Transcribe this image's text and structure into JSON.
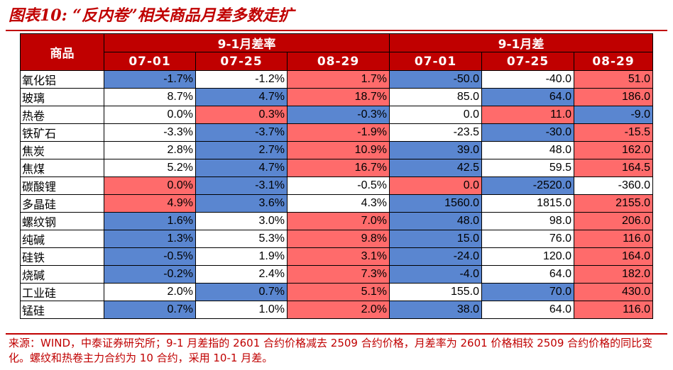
{
  "title": "图表10:   “反内卷”相关商品月差多数走扩",
  "header": {
    "product_label": "商品",
    "group_rate": "9-1月差率",
    "group_diff": "9-1月差",
    "dates": [
      "07-01",
      "07-25",
      "08-29",
      "07-01",
      "07-25",
      "08-29"
    ]
  },
  "colors": {
    "title_red": "#c00000",
    "blue_cell": "#5a86d0",
    "red_cell": "#ff6b6b"
  },
  "rows": [
    {
      "name": "氧化铝",
      "cells": [
        {
          "v": "-1.7%",
          "c": "blue"
        },
        {
          "v": "-1.2%",
          "c": "white"
        },
        {
          "v": "1.7%",
          "c": "red"
        },
        {
          "v": "-50.0",
          "c": "blue"
        },
        {
          "v": "-40.0",
          "c": "white"
        },
        {
          "v": "51.0",
          "c": "red"
        }
      ]
    },
    {
      "name": "玻璃",
      "cells": [
        {
          "v": "8.7%",
          "c": "white"
        },
        {
          "v": "4.7%",
          "c": "blue"
        },
        {
          "v": "18.7%",
          "c": "red"
        },
        {
          "v": "85.0",
          "c": "white"
        },
        {
          "v": "64.0",
          "c": "blue"
        },
        {
          "v": "186.0",
          "c": "red"
        }
      ]
    },
    {
      "name": "热卷",
      "cells": [
        {
          "v": "0.0%",
          "c": "white"
        },
        {
          "v": "0.3%",
          "c": "red"
        },
        {
          "v": "-0.3%",
          "c": "blue"
        },
        {
          "v": "0.0",
          "c": "white"
        },
        {
          "v": "11.0",
          "c": "red"
        },
        {
          "v": "-9.0",
          "c": "blue"
        }
      ]
    },
    {
      "name": "铁矿石",
      "cells": [
        {
          "v": "-3.3%",
          "c": "white"
        },
        {
          "v": "-3.7%",
          "c": "blue"
        },
        {
          "v": "-1.9%",
          "c": "red"
        },
        {
          "v": "-23.5",
          "c": "white"
        },
        {
          "v": "-30.0",
          "c": "blue"
        },
        {
          "v": "-15.5",
          "c": "red"
        }
      ]
    },
    {
      "name": "焦炭",
      "cells": [
        {
          "v": "2.8%",
          "c": "white"
        },
        {
          "v": "2.7%",
          "c": "blue"
        },
        {
          "v": "10.9%",
          "c": "red"
        },
        {
          "v": "39.0",
          "c": "blue"
        },
        {
          "v": "48.0",
          "c": "white"
        },
        {
          "v": "162.0",
          "c": "red"
        }
      ]
    },
    {
      "name": "焦煤",
      "cells": [
        {
          "v": "5.2%",
          "c": "white"
        },
        {
          "v": "4.7%",
          "c": "blue"
        },
        {
          "v": "16.7%",
          "c": "red"
        },
        {
          "v": "42.5",
          "c": "blue"
        },
        {
          "v": "59.5",
          "c": "white"
        },
        {
          "v": "164.5",
          "c": "red"
        }
      ]
    },
    {
      "name": "碳酸锂",
      "cells": [
        {
          "v": "0.0%",
          "c": "red"
        },
        {
          "v": "-3.1%",
          "c": "blue"
        },
        {
          "v": "-0.5%",
          "c": "white"
        },
        {
          "v": "0.0",
          "c": "red"
        },
        {
          "v": "-2520.0",
          "c": "blue"
        },
        {
          "v": "-360.0",
          "c": "white"
        }
      ]
    },
    {
      "name": "多晶硅",
      "cells": [
        {
          "v": "4.9%",
          "c": "red"
        },
        {
          "v": "3.6%",
          "c": "blue"
        },
        {
          "v": "4.3%",
          "c": "white"
        },
        {
          "v": "1560.0",
          "c": "blue"
        },
        {
          "v": "1815.0",
          "c": "white"
        },
        {
          "v": "2155.0",
          "c": "red"
        }
      ]
    },
    {
      "name": "螺纹钢",
      "cells": [
        {
          "v": "1.6%",
          "c": "blue"
        },
        {
          "v": "3.0%",
          "c": "white"
        },
        {
          "v": "7.0%",
          "c": "red"
        },
        {
          "v": "48.0",
          "c": "blue"
        },
        {
          "v": "98.0",
          "c": "white"
        },
        {
          "v": "206.0",
          "c": "red"
        }
      ]
    },
    {
      "name": "纯碱",
      "cells": [
        {
          "v": "1.3%",
          "c": "blue"
        },
        {
          "v": "5.3%",
          "c": "white"
        },
        {
          "v": "9.8%",
          "c": "red"
        },
        {
          "v": "15.0",
          "c": "blue"
        },
        {
          "v": "76.0",
          "c": "white"
        },
        {
          "v": "116.0",
          "c": "red"
        }
      ]
    },
    {
      "name": "硅铁",
      "cells": [
        {
          "v": "-0.5%",
          "c": "blue"
        },
        {
          "v": "1.9%",
          "c": "white"
        },
        {
          "v": "3.1%",
          "c": "red"
        },
        {
          "v": "-24.0",
          "c": "blue"
        },
        {
          "v": "120.0",
          "c": "white"
        },
        {
          "v": "164.0",
          "c": "red"
        }
      ]
    },
    {
      "name": "烧碱",
      "cells": [
        {
          "v": "-0.2%",
          "c": "blue"
        },
        {
          "v": "2.4%",
          "c": "white"
        },
        {
          "v": "7.3%",
          "c": "red"
        },
        {
          "v": "-4.0",
          "c": "blue"
        },
        {
          "v": "64.0",
          "c": "white"
        },
        {
          "v": "182.0",
          "c": "red"
        }
      ]
    },
    {
      "name": "工业硅",
      "cells": [
        {
          "v": "2.0%",
          "c": "white"
        },
        {
          "v": "0.7%",
          "c": "blue"
        },
        {
          "v": "5.1%",
          "c": "red"
        },
        {
          "v": "155.0",
          "c": "white"
        },
        {
          "v": "70.0",
          "c": "blue"
        },
        {
          "v": "430.0",
          "c": "red"
        }
      ]
    },
    {
      "name": "锰硅",
      "cells": [
        {
          "v": "0.7%",
          "c": "blue"
        },
        {
          "v": "1.0%",
          "c": "white"
        },
        {
          "v": "2.0%",
          "c": "red"
        },
        {
          "v": "38.0",
          "c": "blue"
        },
        {
          "v": "64.0",
          "c": "white"
        },
        {
          "v": "116.0",
          "c": "red"
        }
      ]
    }
  ],
  "source": "来源：WIND，中泰证券研究所；9-1 月差指的 2601 合约价格减去 2509 合约价格，月差率为 2601 价格相较 2509 合约价格的同比变化。螺纹和热卷主力合约为 10 合约，采用 10-1 月差。"
}
